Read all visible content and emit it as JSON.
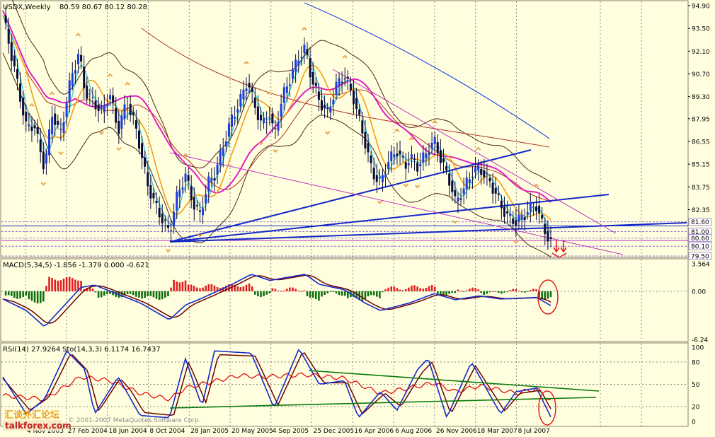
{
  "colors": {
    "background": "#ffffe0",
    "frame": "#8b7d6b",
    "grid": "#5a5a5a",
    "bull_body": "#1e3cdc",
    "bear_body": "#0a0a3c",
    "fractal": "#e8a54a",
    "ma_fast": "#33c6d6",
    "ma_mid": "#f0a014",
    "ma_slow": "#e020c0",
    "bands": "#4a2810",
    "ma_long": "#b03020",
    "ma_longest": "#2848e0",
    "trend": "#1428c8",
    "channel": "#c030c0",
    "level": "#7a4fd0",
    "macd_pos": "#e02020",
    "macd_neg": "#107010",
    "macd_main": "#1428c8",
    "macd_signal": "#700000",
    "rsi": "#e01010",
    "stoch_main": "#1428c8",
    "stoch_signal": "#700000",
    "rsi_trend": "#0a7a0a",
    "annotation": "#e02020"
  },
  "main_panel": {
    "title": "USDX,Weekly",
    "ohlc_text": "80.59 80.67 80.12 80.28",
    "price_labels": [
      "94.90",
      "93.50",
      "92.10",
      "90.70",
      "89.30",
      "87.95",
      "86.55",
      "85.15",
      "83.75",
      "82.35"
    ],
    "level_tags": [
      {
        "label": "81.60",
        "value": 81.6
      },
      {
        "label": "81.00",
        "value": 81.0
      },
      {
        "label": "80.60",
        "value": 80.6
      },
      {
        "label": "80.10",
        "value": 80.1
      },
      {
        "label": "79.50",
        "value": 79.5
      }
    ]
  },
  "macd_panel": {
    "title": "MACD(5,34,5)",
    "values_text": "-1.856 -1.379 0.000 -0.621",
    "scale_labels": [
      "3.564",
      "0.00",
      "-6.24"
    ]
  },
  "rsi_panel": {
    "title": "RSI(14) 27.9264",
    "stoch_text": "Sto(14,3,3) 6.1174 16.7437",
    "scale_labels": [
      "100",
      "80",
      "50",
      "20",
      "0"
    ]
  },
  "time_axis": {
    "labels": [
      "4 Nov 2003",
      "27 Feb 2004",
      "18 Jun 2004",
      "8 Oct 2004",
      "28 Jan 2005",
      "20 May 2005",
      "4 Sep 2005",
      "25 Dec 2005",
      "16 Apr 2006",
      "6 Aug 2006",
      "26 Nov 2006",
      "18 Mar 2007",
      "8 Jul 2007"
    ]
  },
  "watermark": {
    "copyright": "© 2001-2007 MetaQuotes Software Corp.",
    "site": "talkforex.com",
    "site_cn": "汇谈外汇论坛"
  },
  "chart_data": {
    "type": "line",
    "title": "USDX,Weekly",
    "price_scale": [
      79.5,
      94.9
    ],
    "macd_scale": [
      -6.24,
      3.564
    ],
    "rsi_scale": [
      0,
      100
    ],
    "rsi_levels": [
      20,
      50,
      80
    ],
    "horizontal_levels": [
      81.6,
      81.0,
      80.6,
      80.1,
      79.5
    ],
    "legend": "none",
    "grid": true,
    "price_close": [
      {
        "x": "2003-11-04",
        "y": 94.3
      },
      {
        "x": "2003-12-01",
        "y": 91.2
      },
      {
        "x": "2004-01-01",
        "y": 87.4
      },
      {
        "x": "2004-01-20",
        "y": 87.6
      },
      {
        "x": "2004-02-15",
        "y": 84.9
      },
      {
        "x": "2004-03-05",
        "y": 88.3
      },
      {
        "x": "2004-03-25",
        "y": 86.9
      },
      {
        "x": "2004-04-20",
        "y": 90.4
      },
      {
        "x": "2004-05-10",
        "y": 92.0
      },
      {
        "x": "2004-05-25",
        "y": 89.6
      },
      {
        "x": "2004-06-18",
        "y": 88.9
      },
      {
        "x": "2004-07-05",
        "y": 88.3
      },
      {
        "x": "2004-07-25",
        "y": 89.5
      },
      {
        "x": "2004-08-15",
        "y": 87.2
      },
      {
        "x": "2004-09-05",
        "y": 89.0
      },
      {
        "x": "2004-09-25",
        "y": 87.6
      },
      {
        "x": "2004-10-08",
        "y": 86.2
      },
      {
        "x": "2004-10-25",
        "y": 84.0
      },
      {
        "x": "2004-11-15",
        "y": 82.6
      },
      {
        "x": "2004-12-05",
        "y": 81.6
      },
      {
        "x": "2004-12-20",
        "y": 80.9
      },
      {
        "x": "2005-01-05",
        "y": 83.0
      },
      {
        "x": "2005-01-28",
        "y": 84.5
      },
      {
        "x": "2005-02-15",
        "y": 82.8
      },
      {
        "x": "2005-03-05",
        "y": 82.0
      },
      {
        "x": "2005-03-25",
        "y": 84.0
      },
      {
        "x": "2005-04-10",
        "y": 84.5
      },
      {
        "x": "2005-05-01",
        "y": 86.2
      },
      {
        "x": "2005-05-20",
        "y": 87.8
      },
      {
        "x": "2005-06-10",
        "y": 88.9
      },
      {
        "x": "2005-06-30",
        "y": 90.3
      },
      {
        "x": "2005-07-15",
        "y": 89.0
      },
      {
        "x": "2005-08-05",
        "y": 87.5
      },
      {
        "x": "2005-08-25",
        "y": 88.3
      },
      {
        "x": "2005-09-04",
        "y": 86.8
      },
      {
        "x": "2005-09-25",
        "y": 89.3
      },
      {
        "x": "2005-10-15",
        "y": 90.5
      },
      {
        "x": "2005-11-05",
        "y": 91.8
      },
      {
        "x": "2005-11-20",
        "y": 92.3
      },
      {
        "x": "2005-12-05",
        "y": 90.5
      },
      {
        "x": "2005-12-25",
        "y": 89.0
      },
      {
        "x": "2006-01-15",
        "y": 88.3
      },
      {
        "x": "2006-02-05",
        "y": 90.0
      },
      {
        "x": "2006-02-25",
        "y": 90.6
      },
      {
        "x": "2006-03-20",
        "y": 89.2
      },
      {
        "x": "2006-04-16",
        "y": 86.6
      },
      {
        "x": "2006-05-05",
        "y": 84.6
      },
      {
        "x": "2006-05-25",
        "y": 84.0
      },
      {
        "x": "2006-06-15",
        "y": 85.4
      },
      {
        "x": "2006-07-05",
        "y": 86.0
      },
      {
        "x": "2006-07-25",
        "y": 85.0
      },
      {
        "x": "2006-08-06",
        "y": 85.6
      },
      {
        "x": "2006-08-25",
        "y": 85.0
      },
      {
        "x": "2006-09-15",
        "y": 85.8
      },
      {
        "x": "2006-10-05",
        "y": 86.6
      },
      {
        "x": "2006-10-25",
        "y": 85.2
      },
      {
        "x": "2006-11-15",
        "y": 83.9
      },
      {
        "x": "2006-11-26",
        "y": 82.8
      },
      {
        "x": "2006-12-15",
        "y": 83.5
      },
      {
        "x": "2007-01-05",
        "y": 84.6
      },
      {
        "x": "2007-01-25",
        "y": 84.9
      },
      {
        "x": "2007-02-15",
        "y": 84.2
      },
      {
        "x": "2007-03-05",
        "y": 83.4
      },
      {
        "x": "2007-03-18",
        "y": 82.6
      },
      {
        "x": "2007-04-05",
        "y": 81.9
      },
      {
        "x": "2007-04-25",
        "y": 81.6
      },
      {
        "x": "2007-05-15",
        "y": 82.0
      },
      {
        "x": "2007-06-01",
        "y": 82.5
      },
      {
        "x": "2007-06-15",
        "y": 82.6
      },
      {
        "x": "2007-06-25",
        "y": 81.7
      },
      {
        "x": "2007-07-08",
        "y": 80.9
      },
      {
        "x": "2007-07-20",
        "y": 80.28
      }
    ],
    "macd": [
      {
        "x": "2003-11-04",
        "y": -1.0
      },
      {
        "x": "2004-01-01",
        "y": -2.5
      },
      {
        "x": "2004-02-15",
        "y": -4.6
      },
      {
        "x": "2004-04-01",
        "y": -2.0
      },
      {
        "x": "2004-05-15",
        "y": 0.5
      },
      {
        "x": "2004-06-18",
        "y": 0.8
      },
      {
        "x": "2004-08-15",
        "y": -0.4
      },
      {
        "x": "2004-10-08",
        "y": -1.5
      },
      {
        "x": "2004-12-20",
        "y": -3.7
      },
      {
        "x": "2005-01-28",
        "y": -1.8
      },
      {
        "x": "2005-03-10",
        "y": -0.9
      },
      {
        "x": "2005-05-20",
        "y": 0.8
      },
      {
        "x": "2005-07-10",
        "y": 2.2
      },
      {
        "x": "2005-08-25",
        "y": 1.4
      },
      {
        "x": "2005-11-20",
        "y": 2.2
      },
      {
        "x": "2005-12-25",
        "y": 0.9
      },
      {
        "x": "2006-02-25",
        "y": 0.2
      },
      {
        "x": "2006-04-16",
        "y": -1.5
      },
      {
        "x": "2006-05-25",
        "y": -2.5
      },
      {
        "x": "2006-08-06",
        "y": -1.5
      },
      {
        "x": "2006-10-05",
        "y": -0.3
      },
      {
        "x": "2006-11-26",
        "y": -1.1
      },
      {
        "x": "2007-01-25",
        "y": -0.6
      },
      {
        "x": "2007-03-18",
        "y": -1.0
      },
      {
        "x": "2007-06-15",
        "y": -0.8
      },
      {
        "x": "2007-07-20",
        "y": -1.856
      }
    ],
    "rsi": [
      {
        "x": "2003-11-04",
        "y": 35
      },
      {
        "x": "2004-02-15",
        "y": 30
      },
      {
        "x": "2004-05-15",
        "y": 60
      },
      {
        "x": "2004-07-25",
        "y": 55
      },
      {
        "x": "2004-10-08",
        "y": 38
      },
      {
        "x": "2004-12-20",
        "y": 30
      },
      {
        "x": "2005-01-28",
        "y": 45
      },
      {
        "x": "2005-06-10",
        "y": 62
      },
      {
        "x": "2005-08-05",
        "y": 60
      },
      {
        "x": "2005-11-20",
        "y": 63
      },
      {
        "x": "2006-02-25",
        "y": 58
      },
      {
        "x": "2006-05-25",
        "y": 38
      },
      {
        "x": "2006-08-06",
        "y": 45
      },
      {
        "x": "2006-10-05",
        "y": 52
      },
      {
        "x": "2006-11-26",
        "y": 40
      },
      {
        "x": "2007-01-25",
        "y": 48
      },
      {
        "x": "2007-04-25",
        "y": 38
      },
      {
        "x": "2007-06-15",
        "y": 44
      },
      {
        "x": "2007-07-20",
        "y": 27.93
      }
    ],
    "stochastic": [
      {
        "x": "2003-11-04",
        "y": 60
      },
      {
        "x": "2004-01-01",
        "y": 10
      },
      {
        "x": "2004-02-15",
        "y": 30
      },
      {
        "x": "2004-04-10",
        "y": 95
      },
      {
        "x": "2004-05-25",
        "y": 70
      },
      {
        "x": "2004-06-18",
        "y": 10
      },
      {
        "x": "2004-08-15",
        "y": 60
      },
      {
        "x": "2004-09-05",
        "y": 40
      },
      {
        "x": "2004-10-08",
        "y": 8
      },
      {
        "x": "2004-12-20",
        "y": 5
      },
      {
        "x": "2005-01-28",
        "y": 85
      },
      {
        "x": "2005-03-10",
        "y": 20
      },
      {
        "x": "2005-04-10",
        "y": 95
      },
      {
        "x": "2005-07-10",
        "y": 92
      },
      {
        "x": "2005-09-04",
        "y": 18
      },
      {
        "x": "2005-11-05",
        "y": 98
      },
      {
        "x": "2005-12-25",
        "y": 50
      },
      {
        "x": "2006-02-25",
        "y": 55
      },
      {
        "x": "2006-04-01",
        "y": 5
      },
      {
        "x": "2006-05-25",
        "y": 40
      },
      {
        "x": "2006-07-05",
        "y": 15
      },
      {
        "x": "2006-08-25",
        "y": 70
      },
      {
        "x": "2006-09-20",
        "y": 85
      },
      {
        "x": "2006-11-05",
        "y": 5
      },
      {
        "x": "2007-01-05",
        "y": 80
      },
      {
        "x": "2007-03-18",
        "y": 10
      },
      {
        "x": "2007-04-25",
        "y": 40
      },
      {
        "x": "2007-06-15",
        "y": 45
      },
      {
        "x": "2007-07-20",
        "y": 6.12
      }
    ],
    "stochastic_signal": [
      {
        "x": "2003-11-04",
        "y": 58
      },
      {
        "x": "2004-01-10",
        "y": 15
      },
      {
        "x": "2004-02-25",
        "y": 32
      },
      {
        "x": "2004-04-20",
        "y": 92
      },
      {
        "x": "2004-06-01",
        "y": 68
      },
      {
        "x": "2004-06-28",
        "y": 14
      },
      {
        "x": "2004-08-20",
        "y": 58
      },
      {
        "x": "2004-09-15",
        "y": 42
      },
      {
        "x": "2004-10-18",
        "y": 12
      },
      {
        "x": "2004-12-30",
        "y": 8
      },
      {
        "x": "2005-02-05",
        "y": 80
      },
      {
        "x": "2005-03-20",
        "y": 25
      },
      {
        "x": "2005-04-20",
        "y": 90
      },
      {
        "x": "2005-07-20",
        "y": 88
      },
      {
        "x": "2005-09-14",
        "y": 22
      },
      {
        "x": "2005-11-15",
        "y": 95
      },
      {
        "x": "2006-01-05",
        "y": 52
      },
      {
        "x": "2006-03-05",
        "y": 52
      },
      {
        "x": "2006-04-10",
        "y": 10
      },
      {
        "x": "2006-06-05",
        "y": 38
      },
      {
        "x": "2006-07-15",
        "y": 20
      },
      {
        "x": "2006-09-05",
        "y": 66
      },
      {
        "x": "2006-09-30",
        "y": 80
      },
      {
        "x": "2006-11-15",
        "y": 10
      },
      {
        "x": "2007-01-15",
        "y": 75
      },
      {
        "x": "2007-03-28",
        "y": 14
      },
      {
        "x": "2007-05-05",
        "y": 38
      },
      {
        "x": "2007-06-25",
        "y": 42
      },
      {
        "x": "2007-07-20",
        "y": 16.74
      }
    ]
  }
}
